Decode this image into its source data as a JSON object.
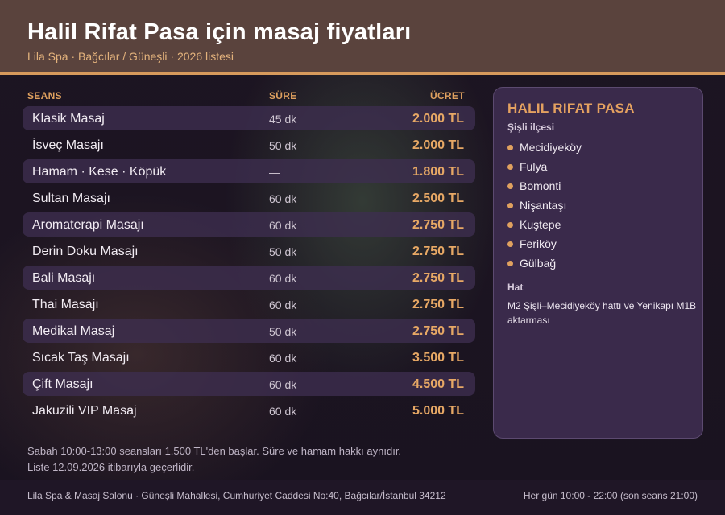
{
  "header": {
    "title": "Halil Rifat Pasa için masaj fiyatları",
    "subtitle": "Lila Spa · Bağcılar / Güneşli · 2026 listesi"
  },
  "table": {
    "columns": [
      "SEANS",
      "SÜRE",
      "ÜCRET"
    ],
    "rows": [
      {
        "name": "Klasik Masaj",
        "duration": "45 dk",
        "price": "2.000 TL"
      },
      {
        "name": "İsveç Masajı",
        "duration": "50 dk",
        "price": "2.000 TL"
      },
      {
        "name": "Hamam · Kese · Köpük",
        "duration": "—",
        "price": "1.800 TL"
      },
      {
        "name": "Sultan Masajı",
        "duration": "60 dk",
        "price": "2.500 TL"
      },
      {
        "name": "Aromaterapi Masajı",
        "duration": "60 dk",
        "price": "2.750 TL"
      },
      {
        "name": "Derin Doku Masajı",
        "duration": "50 dk",
        "price": "2.750 TL"
      },
      {
        "name": "Bali Masajı",
        "duration": "60 dk",
        "price": "2.750 TL"
      },
      {
        "name": "Thai Masajı",
        "duration": "60 dk",
        "price": "2.750 TL"
      },
      {
        "name": "Medikal Masaj",
        "duration": "50 dk",
        "price": "2.750 TL"
      },
      {
        "name": "Sıcak Taş Masajı",
        "duration": "60 dk",
        "price": "3.500 TL"
      },
      {
        "name": "Çift Masajı",
        "duration": "60 dk",
        "price": "4.500 TL"
      },
      {
        "name": "Jakuzili VIP Masaj",
        "duration": "60 dk",
        "price": "5.000 TL"
      }
    ]
  },
  "sidebar": {
    "title": "HALIL RIFAT PASA",
    "subtitle": "Şişli ilçesi",
    "districts": [
      "Mecidiyeköy",
      "Fulya",
      "Bomonti",
      "Nişantaşı",
      "Kuştepe",
      "Feriköy",
      "Gülbağ"
    ],
    "hat_label": "Hat",
    "hat_text": "M2 Şişli–Mecidiyeköy hattı ve Yenikapı M1B aktarması"
  },
  "notes": {
    "line1": "Sabah 10:00-13:00 seansları 1.500 TL'den başlar. Süre ve hamam hakkı aynıdır.",
    "line2": "Liste 12.09.2026 itibarıyla geçerlidir."
  },
  "footer": {
    "address": "Lila Spa & Masaj Salonu · Güneşli Mahallesi, Cumhuriyet Caddesi No:40, Bağcılar/İstanbul 34212",
    "hours": "Her gün 10:00 - 22:00 (son seans 21:00)"
  },
  "colors": {
    "accent": "#e0a15f",
    "header_bg": "#5a433d",
    "card_bg": "#3a2a4b",
    "page_bg": "#1d1522"
  }
}
